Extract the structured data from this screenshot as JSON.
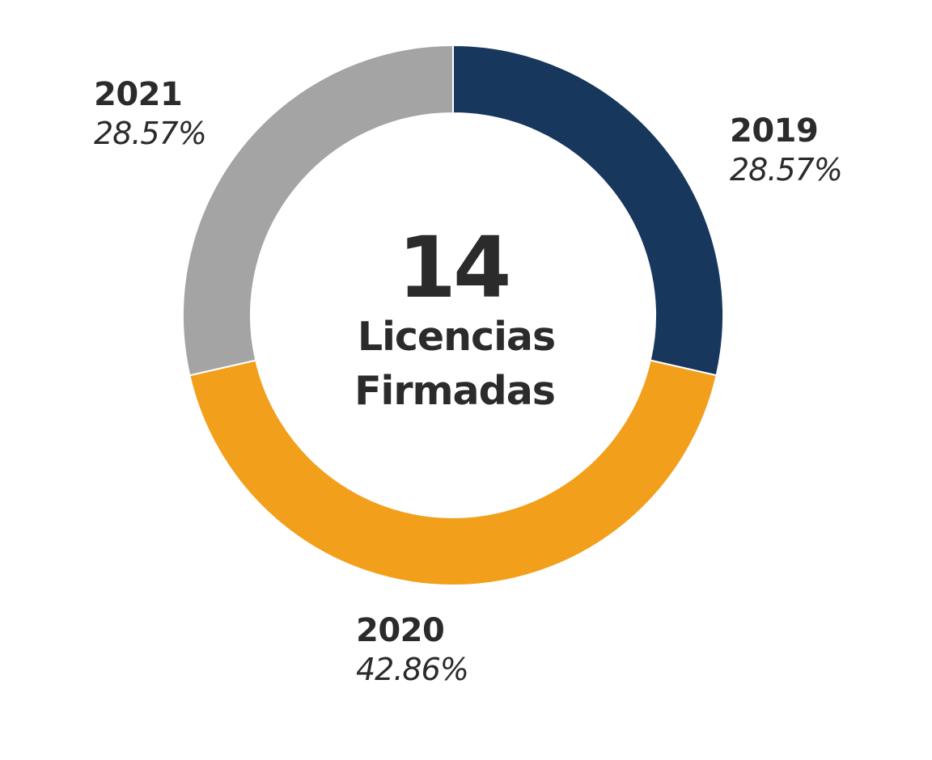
{
  "colors": {
    "text": "#2b2b2b",
    "separator": "#ffffff"
  },
  "chart_data": {
    "type": "pie",
    "variant": "donut",
    "start": "top",
    "direction": "clockwise",
    "total": "14",
    "center_label_lines": [
      "Licencias",
      "Firmadas"
    ],
    "categories": [
      "2019",
      "2020",
      "2021"
    ],
    "values": [
      28.57,
      42.86,
      28.57
    ],
    "value_labels": [
      "28.57%",
      "42.86%",
      "28.57%"
    ],
    "colors": [
      "#17375c",
      "#f29f1c",
      "#a3a4a3"
    ]
  }
}
